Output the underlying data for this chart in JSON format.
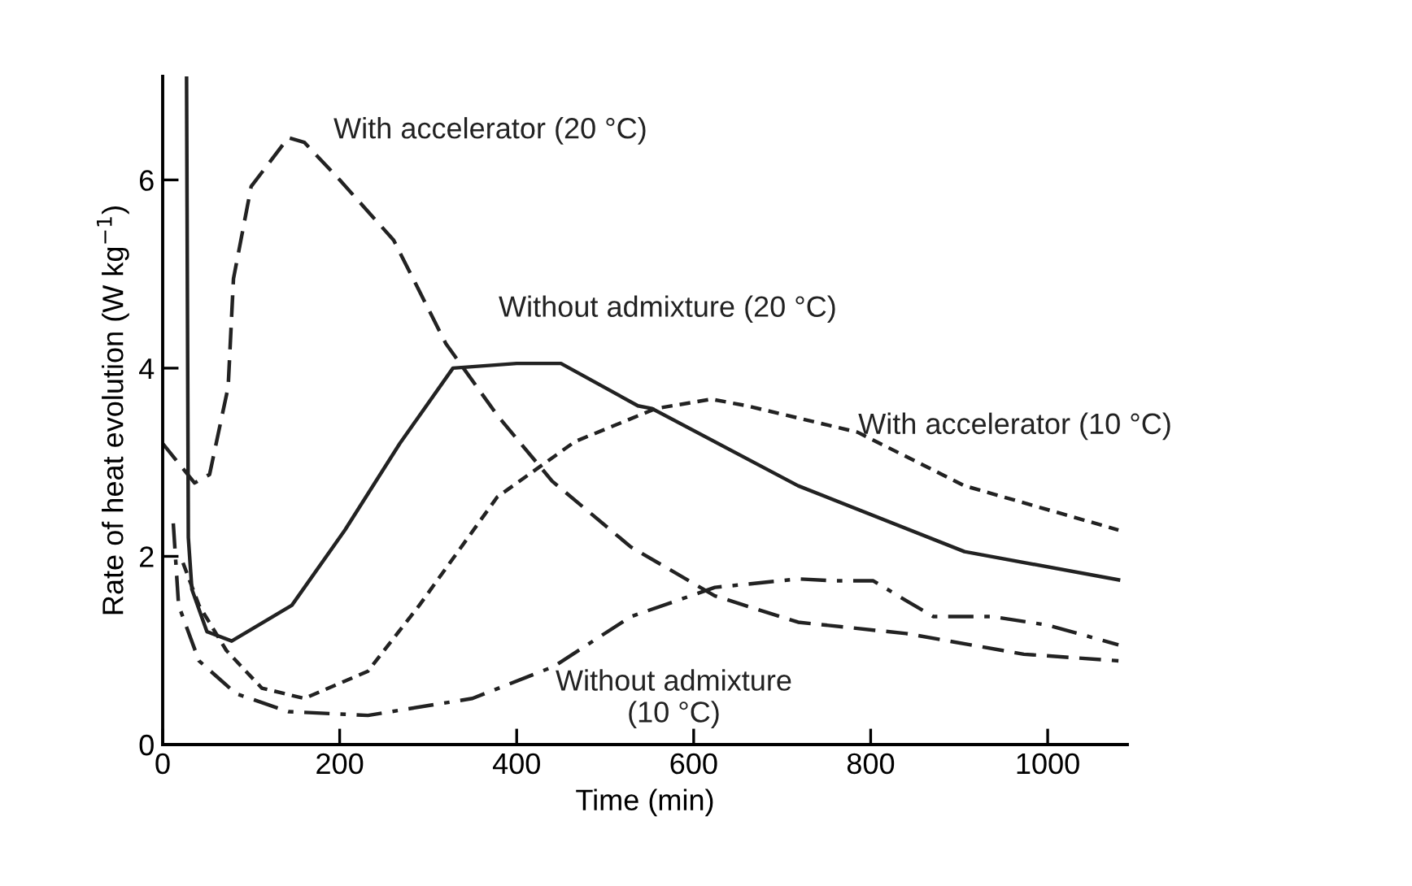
{
  "chart_data": {
    "type": "line",
    "xlabel": "Time (min)",
    "ylabel": "Rate of heat evolution (W kg$^{−1}$)",
    "xlim": [
      0,
      1090
    ],
    "ylim": [
      0,
      7.1
    ],
    "xticks": [
      0,
      200,
      400,
      600,
      800,
      1000
    ],
    "yticks": [
      0,
      2,
      4,
      6
    ],
    "grid": false,
    "legend": false,
    "marker": "none",
    "series": [
      {
        "name": "With accelerator (20 °C)",
        "color": "#222222",
        "line_style": "longdashed",
        "x": [
          0,
          36,
          53,
          74,
          80,
          100,
          142,
          160,
          200,
          261,
          320,
          378,
          440,
          529,
          624,
          718,
          840,
          973,
          1080
        ],
        "values": [
          3.2,
          2.78,
          2.87,
          3.8,
          4.95,
          5.93,
          6.45,
          6.4,
          6.0,
          5.36,
          4.26,
          3.5,
          2.8,
          2.1,
          1.58,
          1.3,
          1.18,
          0.96,
          0.89
        ]
      },
      {
        "name": "Without admixture (20 °C)",
        "color": "#222222",
        "line_style": "solid",
        "x": [
          27,
          29,
          33,
          50,
          78,
          146,
          206,
          268,
          328,
          400,
          450,
          537,
          553,
          718,
          906,
          1080
        ],
        "values": [
          7.1,
          2.2,
          1.65,
          1.2,
          1.1,
          1.48,
          2.28,
          3.2,
          4.0,
          4.05,
          4.05,
          3.6,
          3.57,
          2.75,
          2.05,
          1.75
        ]
      },
      {
        "name": "With accelerator (10 °C)",
        "color": "#222222",
        "line_style": "dashed",
        "x": [
          23,
          41,
          72,
          112,
          160,
          232,
          290,
          378,
          466,
          557,
          620,
          660,
          785,
          906,
          1080
        ],
        "values": [
          1.93,
          1.48,
          1.0,
          0.6,
          0.49,
          0.78,
          1.48,
          2.63,
          3.22,
          3.57,
          3.67,
          3.6,
          3.32,
          2.75,
          2.28
        ]
      },
      {
        "name": "Without admixture\n(10 °C)",
        "color": "#222222",
        "line_style": "dashdot",
        "x": [
          12,
          18,
          41,
          83,
          142,
          232,
          350,
          442,
          529,
          624,
          718,
          760,
          803,
          840,
          871,
          937,
          1000,
          1080
        ],
        "values": [
          2.35,
          1.48,
          0.89,
          0.54,
          0.35,
          0.31,
          0.49,
          0.83,
          1.36,
          1.67,
          1.76,
          1.74,
          1.74,
          1.53,
          1.36,
          1.36,
          1.27,
          1.06
        ]
      }
    ]
  }
}
